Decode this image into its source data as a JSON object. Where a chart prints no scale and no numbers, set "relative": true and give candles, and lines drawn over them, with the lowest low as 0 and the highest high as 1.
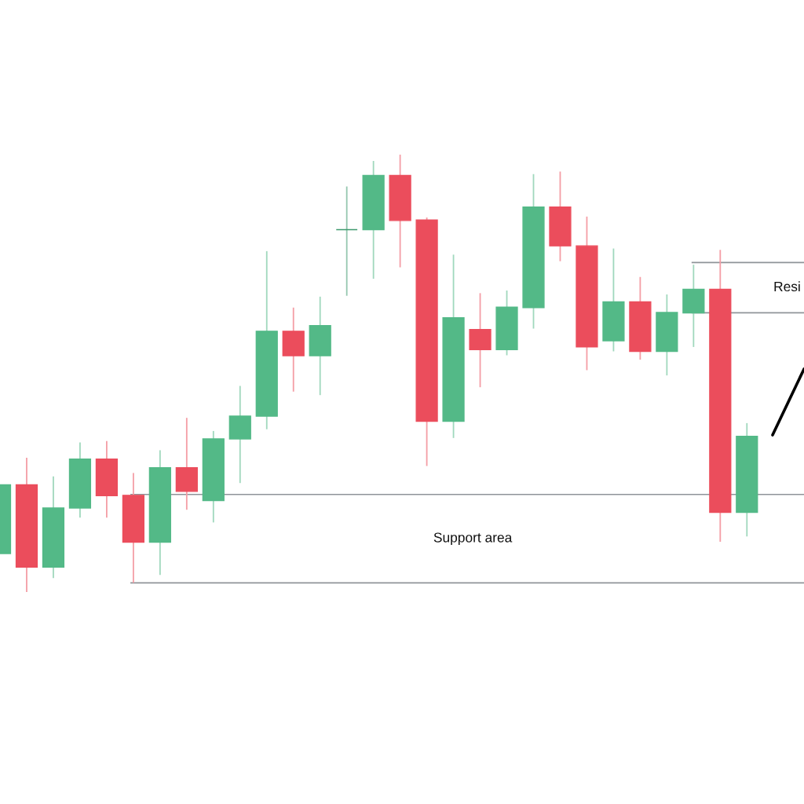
{
  "chart_data": {
    "type": "candlestick",
    "relative": true,
    "categories": [
      null,
      null,
      null,
      null,
      null,
      null,
      null,
      null,
      null,
      null,
      null,
      null,
      null,
      null,
      null,
      null,
      null,
      null,
      null,
      null,
      null,
      null,
      null,
      null,
      null,
      null,
      null,
      null,
      null
    ],
    "ohlc": [
      [
        0.088,
        0.245,
        0.088,
        0.245
      ],
      [
        0.245,
        0.307,
        0,
        0.057
      ],
      [
        0.057,
        0.264,
        0.032,
        0.192
      ],
      [
        0.192,
        0.342,
        0.17,
        0.304
      ],
      [
        0.304,
        0.345,
        0.17,
        0.22
      ],
      [
        0.221,
        0.272,
        0.021,
        0.114
      ],
      [
        0.114,
        0.324,
        0.039,
        0.284
      ],
      [
        0.284,
        0.398,
        0.188,
        0.23
      ],
      [
        0.209,
        0.368,
        0.159,
        0.35
      ],
      [
        0.35,
        0.471,
        0.249,
        0.402
      ],
      [
        0.402,
        0.779,
        0.372,
        0.596
      ],
      [
        0.596,
        0.65,
        0.458,
        0.54
      ],
      [
        0.54,
        0.675,
        0.45,
        0.609
      ],
      [
        0.828,
        0.927,
        0.677,
        0.828
      ],
      [
        0.828,
        0.985,
        0.716,
        0.952
      ],
      [
        0.952,
        1,
        0.742,
        0.849
      ],
      [
        0.85,
        0.856,
        0.288,
        0.39
      ],
      [
        0.39,
        0.771,
        0.352,
        0.627
      ],
      [
        0.6,
        0.683,
        0.468,
        0.554
      ],
      [
        0.554,
        0.689,
        0.541,
        0.651
      ],
      [
        0.65,
        0.955,
        0.602,
        0.88
      ],
      [
        0.88,
        0.961,
        0.756,
        0.791
      ],
      [
        0.791,
        0.858,
        0.507,
        0.56
      ],
      [
        0.574,
        0.785,
        0.55,
        0.663
      ],
      [
        0.663,
        0.72,
        0.531,
        0.55
      ],
      [
        0.55,
        0.68,
        0.495,
        0.639
      ],
      [
        0.638,
        0.748,
        0.56,
        0.692
      ],
      [
        0.692,
        0.782,
        0.115,
        0.182
      ],
      [
        0.182,
        0.386,
        0.127,
        0.356
      ]
    ],
    "colors": [
      "#53b987",
      "#eb4d5c",
      "#53b987",
      "#53b987",
      "#eb4d5c",
      "#eb4d5c",
      "#53b987",
      "#eb4d5c",
      "#53b987",
      "#53b987",
      "#53b987",
      "#eb4d5c",
      "#53b987",
      "#3e9a6e",
      "#53b987",
      "#eb4d5c",
      "#eb4d5c",
      "#53b987",
      "#eb4d5c",
      "#53b987",
      "#53b987",
      "#eb4d5c",
      "#eb4d5c",
      "#53b987",
      "#eb4d5c",
      "#53b987",
      "#53b987",
      "#eb4d5c",
      "#53b987"
    ],
    "ref_lines": [
      {
        "axis": "y",
        "value": 0.223,
        "color": "#8f9499"
      },
      {
        "axis": "y",
        "value": 0.021,
        "label": "Support area",
        "color": "#8f9499"
      },
      {
        "axis": "y",
        "value": 0.753,
        "color": "#8f9499"
      },
      {
        "axis": "y",
        "value": 0.638,
        "label": "Resi",
        "color": "#8f9499"
      }
    ]
  }
}
